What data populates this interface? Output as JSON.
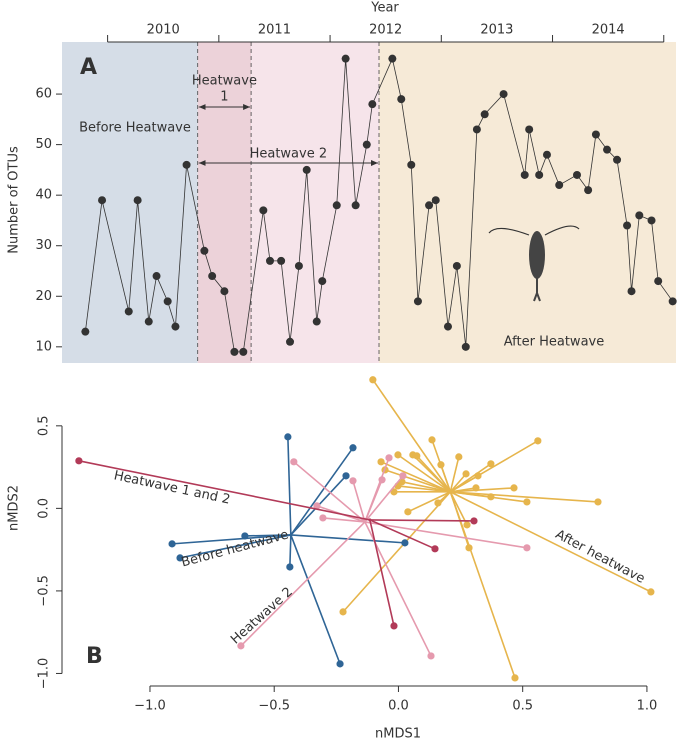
{
  "chart_data": [
    {
      "type": "line",
      "panel_label": "A",
      "x_label": "Year",
      "y_label": "Number of OTUs",
      "xlim": [
        2009.59,
        2015.11
      ],
      "ylim": [
        6.8,
        70.3
      ],
      "xticks": [
        {
          "value": 2010.5,
          "label": "2010"
        },
        {
          "value": 2011.5,
          "label": "2011"
        },
        {
          "value": 2012.5,
          "label": "2012"
        },
        {
          "value": 2013.5,
          "label": "2013"
        },
        {
          "value": 2014.5,
          "label": "2014"
        }
      ],
      "yticks": [
        10,
        20,
        30,
        40,
        50,
        60
      ],
      "color": "#333333",
      "periods": [
        {
          "label": "Before Heatwave",
          "start": 2009.59,
          "end": 2010.81,
          "color": "#d5dde7"
        },
        {
          "label_lines": [
            "Heatwave",
            "1"
          ],
          "start": 2010.81,
          "end": 2011.29,
          "color": "#ecd2d9"
        },
        {
          "label": "Heatwave 2",
          "start": 2011.29,
          "end": 2012.44,
          "color": "#f6e4ea"
        },
        {
          "label": "After Heatwave",
          "start": 2012.44,
          "end": 2015.11,
          "color": "#f6ead7"
        }
      ],
      "x": [
        2009.8,
        2009.95,
        2010.19,
        2010.27,
        2010.37,
        2010.44,
        2010.54,
        2010.61,
        2010.71,
        2010.87,
        2010.94,
        2011.05,
        2011.14,
        2011.22,
        2011.4,
        2011.46,
        2011.56,
        2011.64,
        2011.72,
        2011.79,
        2011.88,
        2011.93,
        2012.06,
        2012.14,
        2012.23,
        2012.33,
        2012.38,
        2012.56,
        2012.64,
        2012.73,
        2012.79,
        2012.89,
        2012.95,
        2013.06,
        2013.14,
        2013.22,
        2013.32,
        2013.39,
        2013.56,
        2013.75,
        2013.79,
        2013.88,
        2013.95,
        2014.06,
        2014.22,
        2014.32,
        2014.39,
        2014.49,
        2014.58,
        2014.67,
        2014.71,
        2014.78,
        2014.89,
        2014.95,
        2015.08
      ],
      "values": [
        13,
        39,
        17,
        39,
        15,
        24,
        19,
        14,
        46,
        29,
        24,
        21,
        9,
        9,
        37,
        27,
        27,
        11,
        26,
        45,
        15,
        23,
        38,
        67,
        38,
        50,
        58,
        67,
        59,
        46,
        19,
        38,
        39,
        14,
        26,
        10,
        53,
        56,
        60,
        44,
        53,
        44,
        48,
        42,
        44,
        41,
        52,
        49,
        47,
        34,
        21,
        36,
        35,
        23,
        19
      ]
    },
    {
      "type": "scatter",
      "panel_label": "B",
      "x_label": "nMDS1",
      "y_label": "nMDS2",
      "xlim": [
        -1.354,
        1.117
      ],
      "ylim": [
        -1.076,
        0.82
      ],
      "xticks": [
        {
          "value": -1,
          "label": "−1.0"
        },
        {
          "value": -0.5,
          "label": "−0.5"
        },
        {
          "value": 0,
          "label": "0.0"
        },
        {
          "value": 0.5,
          "label": "0.5"
        },
        {
          "value": 1,
          "label": "1.0"
        }
      ],
      "yticks": [
        {
          "value": 0.5,
          "label": "0.5"
        },
        {
          "value": 0,
          "label": "0.0"
        },
        {
          "value": -0.5,
          "label": "−0.5"
        },
        {
          "value": -1,
          "label": "−1.0"
        }
      ],
      "groups": [
        {
          "name": "Before heatwave",
          "color": "#2f6596",
          "centroid_x": -0.433,
          "centroid_y": -0.161,
          "x": [
            -0.445,
            -0.211,
            -0.183,
            -0.618,
            -0.911,
            -0.879,
            -0.437,
            0.026,
            -0.235
          ],
          "y": [
            0.433,
            0.197,
            0.367,
            -0.167,
            -0.215,
            -0.3,
            -0.355,
            -0.209,
            -0.942
          ]
        },
        {
          "name": "Heatwave 1 and 2",
          "color": "#b23a58",
          "centroid_x": -0.115,
          "centroid_y": -0.07,
          "x": [
            -1.286,
            0.304,
            0.147,
            -0.018
          ],
          "y": [
            0.288,
            -0.076,
            -0.245,
            -0.712
          ]
        },
        {
          "name": "Heatwave 2",
          "color": "#e59aae",
          "centroid_x": -0.135,
          "centroid_y": -0.082,
          "x": [
            -0.421,
            -0.328,
            -0.304,
            -0.183,
            -0.066,
            -0.038,
            -0.634,
            0.131,
            0.517,
            0.018
          ],
          "y": [
            0.282,
            0.015,
            -0.058,
            0.167,
            0.173,
            0.306,
            -0.833,
            -0.894,
            -0.239,
            0.197
          ]
        },
        {
          "name": "After heatwave",
          "color": "#e6b54c",
          "centroid_x": 0.209,
          "centroid_y": 0.1,
          "x": [
            -0.103,
            -0.223,
            0.469,
            1.016,
            0.803,
            0.561,
            0.372,
            -0.07,
            -0.054,
            -0.018,
            0.014,
            0.058,
            0.074,
            0.135,
            0.171,
            0.243,
            0.272,
            0.32,
            0.312,
            0.372,
            0.465,
            0.517,
            -0.002,
            0.038,
            0.159,
            0.276,
            0.284,
            -0.002
          ],
          "y": [
            0.779,
            -0.627,
            -1.027,
            -0.506,
            0.039,
            0.409,
            0.27,
            0.282,
            0.233,
            0.1,
            0.161,
            0.324,
            0.318,
            0.415,
            0.264,
            0.312,
            0.209,
            0.197,
            0.124,
            0.07,
            0.124,
            0.039,
            0.136,
            -0.021,
            0.033,
            -0.1,
            -0.239,
            0.324
          ]
        }
      ]
    }
  ]
}
